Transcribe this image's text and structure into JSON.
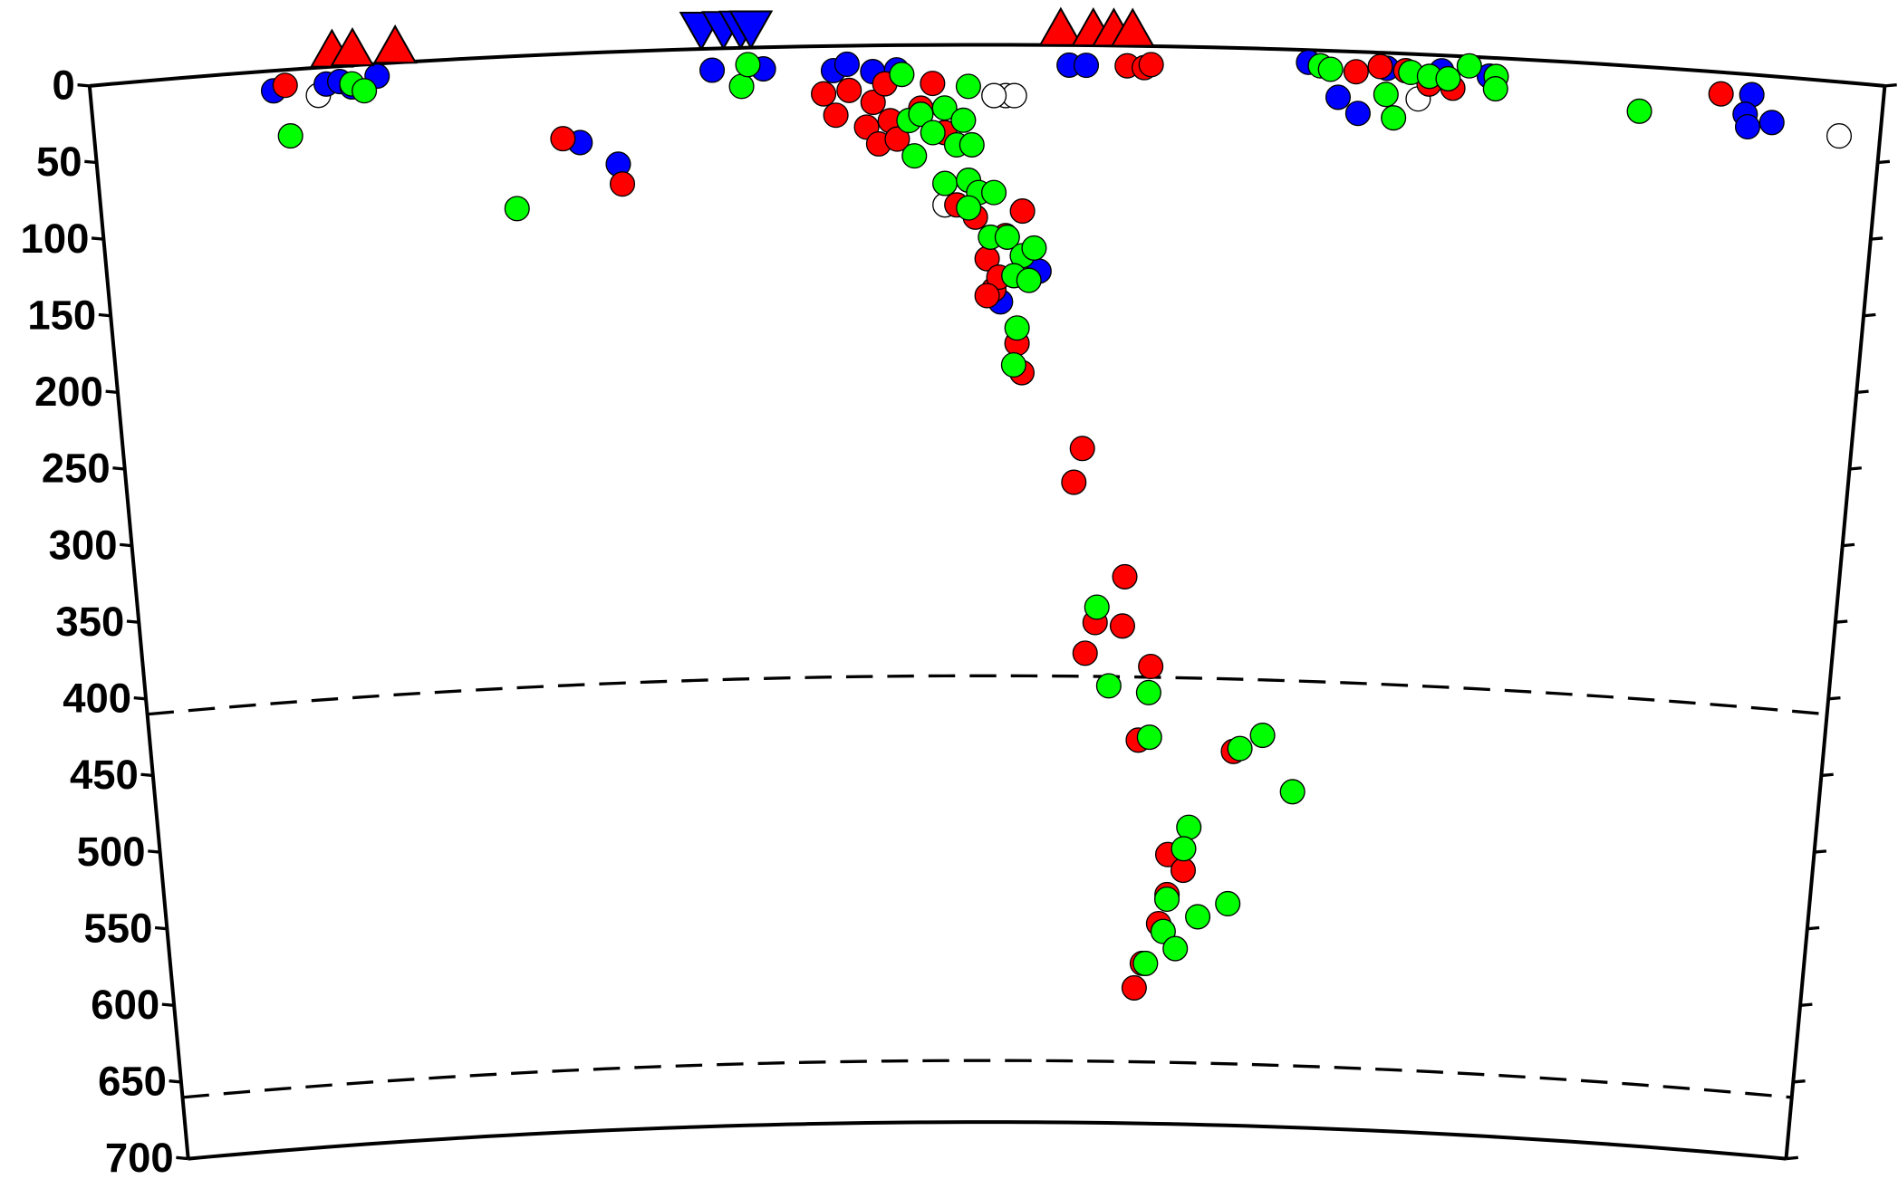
{
  "chart_data": {
    "type": "scatter",
    "xlim": [
      0,
      10.5
    ],
    "ylim": [
      0,
      700
    ],
    "yticks": [
      0,
      50,
      100,
      150,
      200,
      250,
      300,
      350,
      400,
      450,
      500,
      550,
      600,
      650,
      700
    ],
    "discontinuities": [
      410,
      660
    ],
    "series": [
      {
        "color": "#ffffff",
        "marker": "circle",
        "x": [
          1.33,
          5.36,
          5.41,
          5.29,
          5.0,
          7.78,
          10.26
        ],
        "values": [
          18,
          33,
          33,
          33,
          104,
          29,
          35
        ]
      },
      {
        "color": "#0000ff",
        "marker": "circle",
        "x": [
          1.07,
          1.38,
          1.46,
          1.68,
          1.53,
          2.85,
          3.07,
          3.64,
          3.94,
          4.35,
          4.43,
          4.58,
          4.72,
          5.33,
          5.56,
          5.73,
          5.83,
          7.13,
          7.31,
          7.43,
          7.59,
          7.91,
          8.19,
          9.73,
          9.7,
          9.72,
          9.86
        ],
        "values": [
          13,
          11,
          10,
          8,
          14,
          58,
          73,
          14,
          14,
          16,
          12,
          17,
          16,
          167,
          147,
          13,
          13,
          8,
          30,
          40,
          10,
          10,
          12,
          13,
          26,
          34,
          30
        ]
      },
      {
        "color": "#ff0000",
        "marker": "circle",
        "x": [
          1.14,
          2.75,
          3.09,
          4.29,
          4.36,
          4.44,
          4.54,
          4.58,
          4.61,
          4.65,
          4.68,
          4.72,
          4.86,
          4.93,
          5.0,
          5.07,
          5.18,
          5.25,
          5.29,
          5.36,
          5.46,
          5.43,
          5.46,
          5.32,
          5.25,
          5.83,
          5.78,
          6.1,
          5.92,
          6.09,
          5.86,
          6.27,
          6.2,
          6.8,
          6.4,
          6.5,
          6.4,
          6.35,
          6.25,
          6.2,
          6.07,
          6.17,
          6.21,
          7.41,
          7.7,
          7.84,
          7.98,
          7.55,
          9.55
        ],
        "values": [
          10,
          55,
          86,
          31,
          45,
          29,
          53,
          37,
          64,
          25,
          49,
          61,
          41,
          25,
          57,
          104,
          112,
          139,
          159,
          124,
          108,
          194,
          213,
          151,
          163,
          262,
          284,
          345,
          375,
          377,
          395,
          403,
          451,
          457,
          525,
          535,
          551,
          570,
          596,
          612,
          13,
          14,
          12,
          13,
          11,
          19,
          21,
          9,
          14
        ]
      },
      {
        "color": "#00ff00",
        "marker": "circle",
        "x": [
          1.53,
          1.6,
          1.15,
          2.46,
          3.81,
          3.85,
          4.75,
          4.79,
          4.82,
          4.86,
          4.93,
          5.0,
          5.07,
          5.11,
          5.14,
          5.16,
          5.0,
          5.14,
          5.2,
          5.29,
          5.14,
          5.27,
          5.37,
          5.46,
          5.53,
          5.41,
          5.5,
          5.43,
          5.41,
          5.93,
          6.01,
          6.26,
          6.27,
          6.84,
          6.98,
          7.18,
          6.53,
          6.5,
          6.4,
          6.6,
          6.79,
          6.38,
          6.46,
          6.27,
          7.2,
          7.26,
          7.59,
          7.64,
          7.73,
          7.84,
          7.95,
          8.07,
          8.23,
          8.23,
          9.08
        ],
        "values": [
          12,
          17,
          43,
          99,
          25,
          11,
          19,
          49,
          72,
          45,
          57,
          41,
          65,
          49,
          27,
          65,
          90,
          88,
          96,
          96,
          106,
          125,
          125,
          137,
          132,
          150,
          153,
          184,
          208,
          365,
          416,
          420,
          449,
          455,
          446,
          482,
          507,
          521,
          554,
          565,
          556,
          575,
          586,
          596,
          10,
          12,
          27,
          42,
          12,
          14,
          15,
          6,
          12,
          20,
          29
        ]
      },
      {
        "color": "#ff0000",
        "marker": "triangle",
        "x": [
          1.42,
          1.54,
          1.79,
          5.68,
          5.87,
          5.99,
          6.1
        ],
        "values": [
          0,
          0,
          0,
          0,
          0,
          0,
          0
        ]
      },
      {
        "color": "#0000ff",
        "marker": "inverted-triangle",
        "x": [
          3.58,
          3.71,
          3.81,
          3.87
        ],
        "values": [
          0,
          0,
          0,
          0
        ]
      }
    ]
  }
}
